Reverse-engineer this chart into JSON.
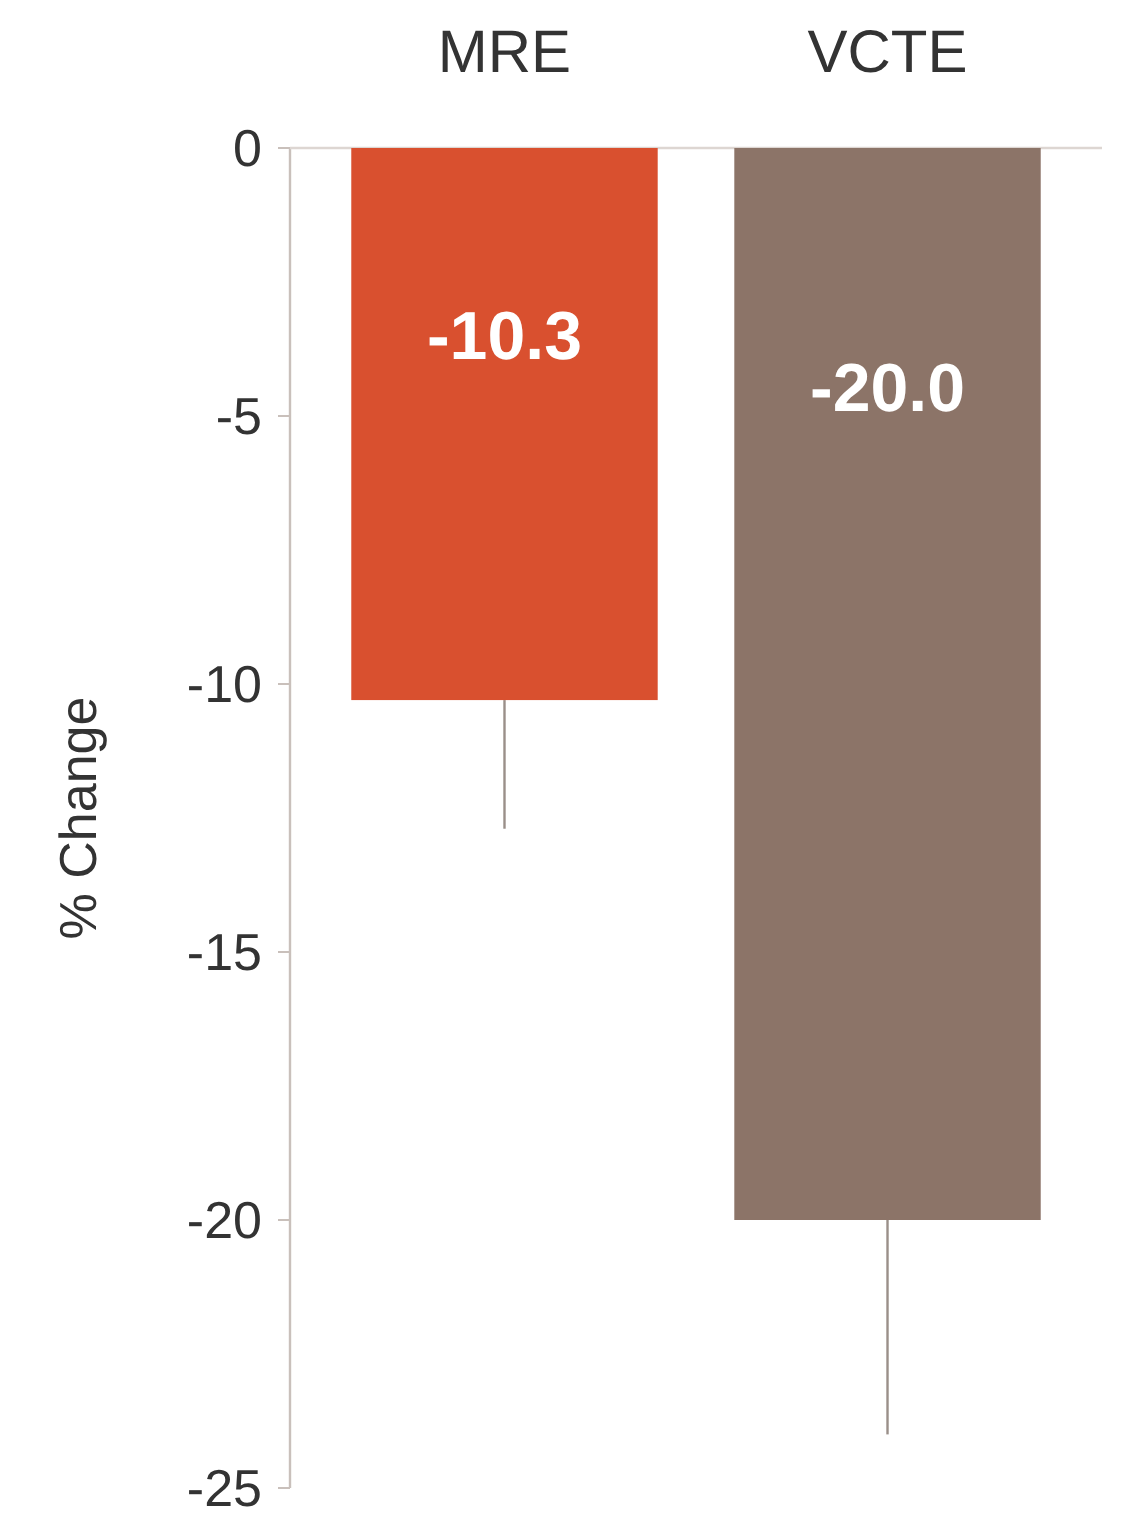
{
  "chart_data": {
    "type": "bar",
    "ylabel": "% Change",
    "categories": [
      "MRE",
      "VCTE"
    ],
    "values": [
      -10.3,
      -20.0
    ],
    "value_labels": [
      "-10.3",
      "-20.0"
    ],
    "colors": [
      "#d9502f",
      "#8c7468"
    ],
    "errors": [
      [
        -12.7,
        -10.3
      ],
      [
        -24.0,
        -20.0
      ]
    ],
    "ylim": [
      -25,
      0
    ],
    "yticks": [
      -25,
      -20,
      -15,
      -10,
      -5,
      0
    ],
    "grid": false
  }
}
